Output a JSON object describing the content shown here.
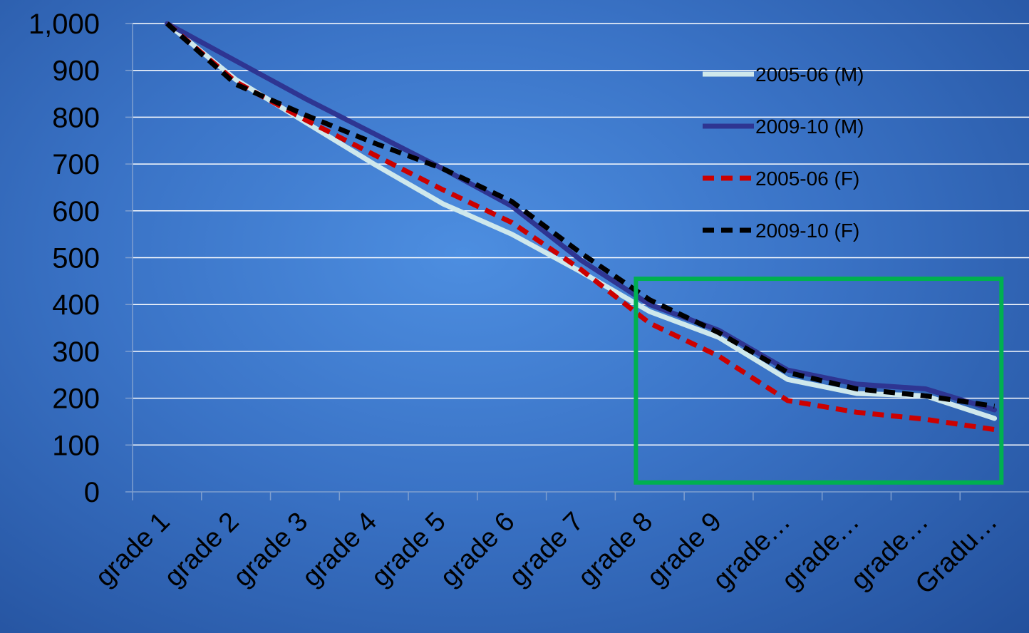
{
  "chart_data": {
    "type": "line",
    "categories": [
      "grade 1",
      "grade 2",
      "grade 3",
      "grade 4",
      "grade 5",
      "grade 6",
      "grade 7",
      "grade 8",
      "grade 9",
      "grade…",
      "grade…",
      "grade…",
      "Gradu…"
    ],
    "ylim": [
      0,
      1000
    ],
    "yticks": [
      "0",
      "100",
      "200",
      "300",
      "400",
      "500",
      "600",
      "700",
      "800",
      "900",
      "1,000"
    ],
    "grid": true,
    "legend_position": "top-right",
    "series": [
      {
        "name": "2005-06 (M)",
        "color": "#cfe8ec",
        "dash": "solid",
        "values": [
          1000,
          880,
          790,
          700,
          615,
          550,
          470,
          385,
          330,
          240,
          210,
          205,
          157
        ]
      },
      {
        "name": "2009-10 (M)",
        "color": "#2e3592",
        "dash": "solid",
        "values": [
          1000,
          920,
          840,
          765,
          690,
          610,
          495,
          400,
          345,
          260,
          230,
          220,
          175
        ]
      },
      {
        "name": "2005-06 (F)",
        "color": "#cc0000",
        "dash": "dashed",
        "values": [
          1000,
          875,
          795,
          720,
          645,
          575,
          475,
          360,
          290,
          195,
          170,
          155,
          133
        ]
      },
      {
        "name": "2009-10 (F)",
        "color": "#000000",
        "dash": "dashed",
        "values": [
          1000,
          870,
          805,
          745,
          690,
          620,
          510,
          410,
          340,
          255,
          220,
          205,
          183
        ]
      }
    ],
    "highlight": {
      "color": "#00b050",
      "x_from": 7.3,
      "x_to": 12.6,
      "y_from": 20,
      "y_to": 455
    }
  }
}
